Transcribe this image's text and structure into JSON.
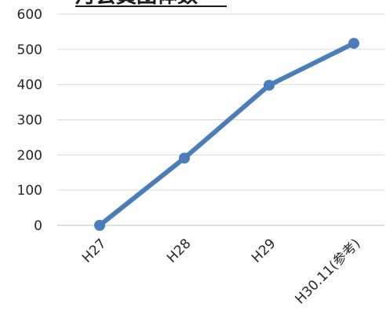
{
  "chart_data": {
    "type": "line",
    "title": "月会員団体数",
    "categories": [
      "H27",
      "H28",
      "H29",
      "H30.11(参考)"
    ],
    "series": [
      {
        "values": [
          0,
          191,
          398,
          517
        ]
      }
    ],
    "ylim": [
      0,
      600
    ],
    "yticks": [
      0,
      100,
      200,
      300,
      400,
      500,
      600
    ],
    "xlabel": "",
    "ylabel": "",
    "grid": true,
    "legend": "none",
    "colors": {
      "line": "#4a7ebb",
      "grid": "#d9d9d9",
      "axis": "#bfbfbf",
      "text": "#262626"
    }
  }
}
